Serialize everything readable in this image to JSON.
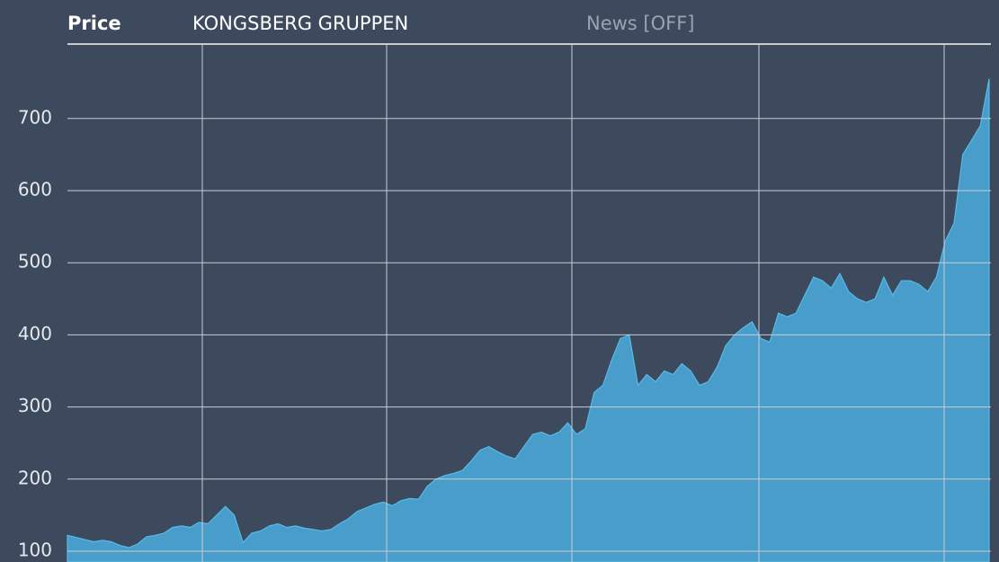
{
  "chart_data": {
    "type": "area",
    "tab": "Price",
    "title": "KONGSBERG GRUPPEN",
    "news_toggle": "News [OFF]",
    "color": "#4aa6d6",
    "values": [
      122,
      119,
      116,
      113,
      115,
      113,
      108,
      105,
      110,
      120,
      122,
      125,
      133,
      135,
      133,
      140,
      138,
      150,
      162,
      150,
      112,
      125,
      128,
      135,
      138,
      133,
      135,
      132,
      130,
      128,
      130,
      138,
      145,
      155,
      160,
      165,
      168,
      163,
      170,
      173,
      172,
      190,
      200,
      205,
      208,
      212,
      225,
      240,
      245,
      238,
      232,
      228,
      245,
      262,
      265,
      260,
      265,
      278,
      262,
      270,
      320,
      330,
      365,
      395,
      400,
      330,
      345,
      335,
      350,
      345,
      360,
      350,
      330,
      335,
      355,
      385,
      400,
      410,
      418,
      395,
      390,
      430,
      425,
      430,
      455,
      480,
      475,
      465,
      485,
      460,
      450,
      445,
      450,
      480,
      455,
      475,
      475,
      470,
      460,
      480,
      530,
      555,
      650,
      670,
      690,
      755
    ],
    "ylim": [
      85,
      802
    ],
    "yticks": [
      100,
      200,
      300,
      400,
      500,
      600,
      700
    ],
    "grid": true
  }
}
